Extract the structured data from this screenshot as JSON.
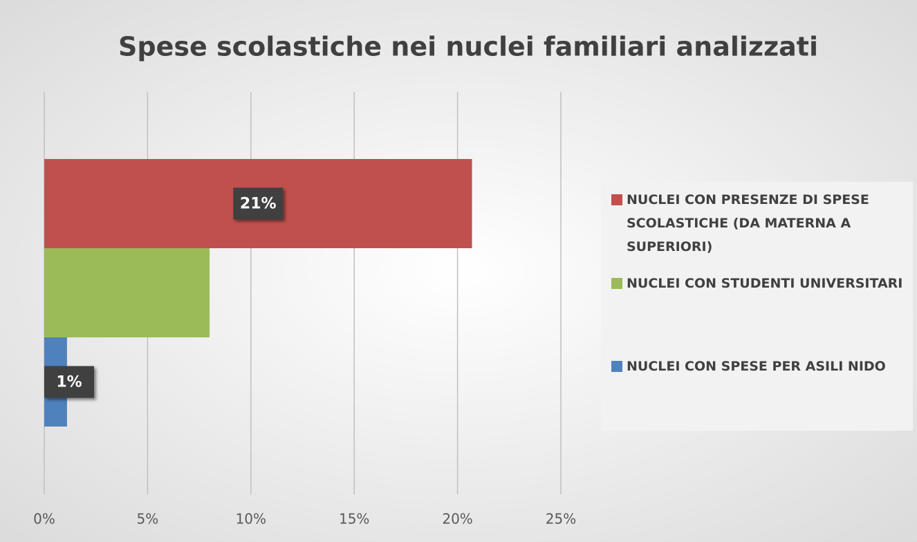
{
  "chart_data": {
    "type": "bar",
    "orientation": "horizontal",
    "title": "Spese scolastiche nei nuclei familiari analizzati",
    "series": [
      {
        "name": "NUCLEI CON PRESENZE DI SPESE SCOLASTICHE (DA MATERNA A SUPERIORI)",
        "color": "#c0504d",
        "values": [
          20.7
        ],
        "value_labels": [
          "21%"
        ]
      },
      {
        "name": "NUCLEI CON STUDENTI UNIVERSITARI",
        "color": "#9bbb59",
        "values": [
          8.0
        ]
      },
      {
        "name": "NUCLEI CON SPESE PER ASILI NIDO",
        "color": "#4f81bd",
        "values": [
          1.1
        ],
        "value_labels": [
          "1%"
        ]
      }
    ],
    "xlim": [
      0,
      25
    ],
    "xticks": [
      {
        "value": 0,
        "label": "0%"
      },
      {
        "value": 5,
        "label": "5%"
      },
      {
        "value": 10,
        "label": "10%"
      },
      {
        "value": 15,
        "label": "15%"
      },
      {
        "value": 20,
        "label": "20%"
      },
      {
        "value": 25,
        "label": "25%"
      }
    ],
    "grid": true,
    "legend": "right"
  }
}
